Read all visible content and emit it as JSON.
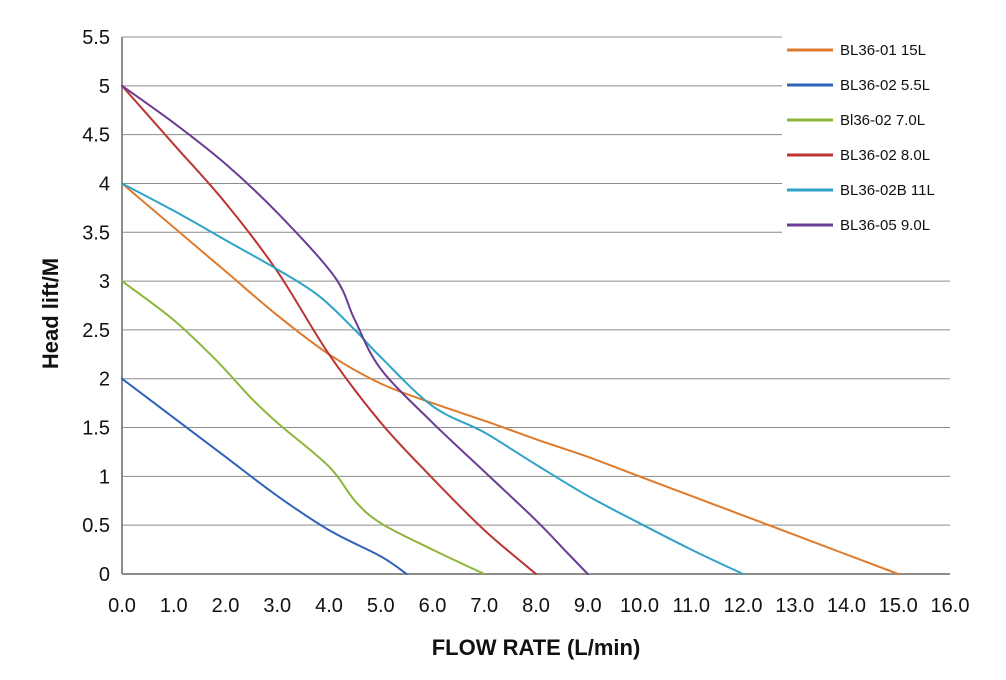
{
  "chart_data": {
    "type": "line",
    "title": "",
    "xlabel": "FLOW RATE (L/min)",
    "ylabel": "Head lift/M",
    "xlim": [
      0,
      16
    ],
    "ylim": [
      0,
      5.5
    ],
    "grid": true,
    "legend_position": "top-right",
    "x_ticks": [
      "0.0",
      "1.0",
      "2.0",
      "3.0",
      "4.0",
      "5.0",
      "6.0",
      "7.0",
      "8.0",
      "9.0",
      "10.0",
      "11.0",
      "12.0",
      "13.0",
      "14.0",
      "15.0",
      "16.0"
    ],
    "y_ticks": [
      "0",
      "0.5",
      "1",
      "1.5",
      "2",
      "2.5",
      "3",
      "3.5",
      "4",
      "4.5",
      "5",
      "5.5"
    ],
    "series": [
      {
        "name": "BL36-01 15L",
        "color": "#e07a2b",
        "points": [
          [
            0,
            4.0
          ],
          [
            1,
            3.55
          ],
          [
            2,
            3.1
          ],
          [
            3,
            2.65
          ],
          [
            4,
            2.25
          ],
          [
            5,
            1.95
          ],
          [
            6,
            1.75
          ],
          [
            7,
            1.57
          ],
          [
            8,
            1.38
          ],
          [
            9,
            1.2
          ],
          [
            10,
            1.0
          ],
          [
            11,
            0.8
          ],
          [
            12,
            0.6
          ],
          [
            13,
            0.4
          ],
          [
            14,
            0.2
          ],
          [
            15,
            0.0
          ]
        ]
      },
      {
        "name": "BL36-02 5.5L",
        "color": "#2e63b8",
        "points": [
          [
            0,
            2.0
          ],
          [
            1,
            1.6
          ],
          [
            2,
            1.2
          ],
          [
            3,
            0.8
          ],
          [
            4,
            0.45
          ],
          [
            5,
            0.18
          ],
          [
            5.5,
            0.0
          ]
        ]
      },
      {
        "name": "Bl36-02 7.0L",
        "color": "#8db53a",
        "points": [
          [
            0,
            3.0
          ],
          [
            1,
            2.6
          ],
          [
            1.8,
            2.2
          ],
          [
            2.5,
            1.8
          ],
          [
            3,
            1.55
          ],
          [
            4,
            1.1
          ],
          [
            4.5,
            0.75
          ],
          [
            5,
            0.52
          ],
          [
            6,
            0.25
          ],
          [
            7,
            0.0
          ]
        ]
      },
      {
        "name": "BL36-02 8.0L",
        "color": "#bd3434",
        "points": [
          [
            0,
            5.0
          ],
          [
            1,
            4.4
          ],
          [
            2,
            3.8
          ],
          [
            3,
            3.1
          ],
          [
            4,
            2.25
          ],
          [
            5,
            1.55
          ],
          [
            6,
            0.98
          ],
          [
            7,
            0.45
          ],
          [
            8,
            0.0
          ]
        ]
      },
      {
        "name": "BL36-02B 11L",
        "color": "#2ea3c7",
        "points": [
          [
            0,
            4.0
          ],
          [
            1,
            3.72
          ],
          [
            2,
            3.42
          ],
          [
            3,
            3.12
          ],
          [
            3.8,
            2.85
          ],
          [
            4.5,
            2.5
          ],
          [
            5,
            2.22
          ],
          [
            6,
            1.72
          ],
          [
            7,
            1.45
          ],
          [
            8,
            1.12
          ],
          [
            9,
            0.8
          ],
          [
            10,
            0.52
          ],
          [
            11,
            0.25
          ],
          [
            12,
            0.0
          ]
        ]
      },
      {
        "name": "BL36-05 9.0L",
        "color": "#6a3c96",
        "points": [
          [
            0,
            5.0
          ],
          [
            1,
            4.62
          ],
          [
            2,
            4.2
          ],
          [
            3,
            3.7
          ],
          [
            4.1,
            3.05
          ],
          [
            4.5,
            2.6
          ],
          [
            5,
            2.1
          ],
          [
            6,
            1.55
          ],
          [
            7,
            1.05
          ],
          [
            8,
            0.55
          ],
          [
            8.6,
            0.22
          ],
          [
            9,
            0.0
          ]
        ]
      }
    ]
  }
}
